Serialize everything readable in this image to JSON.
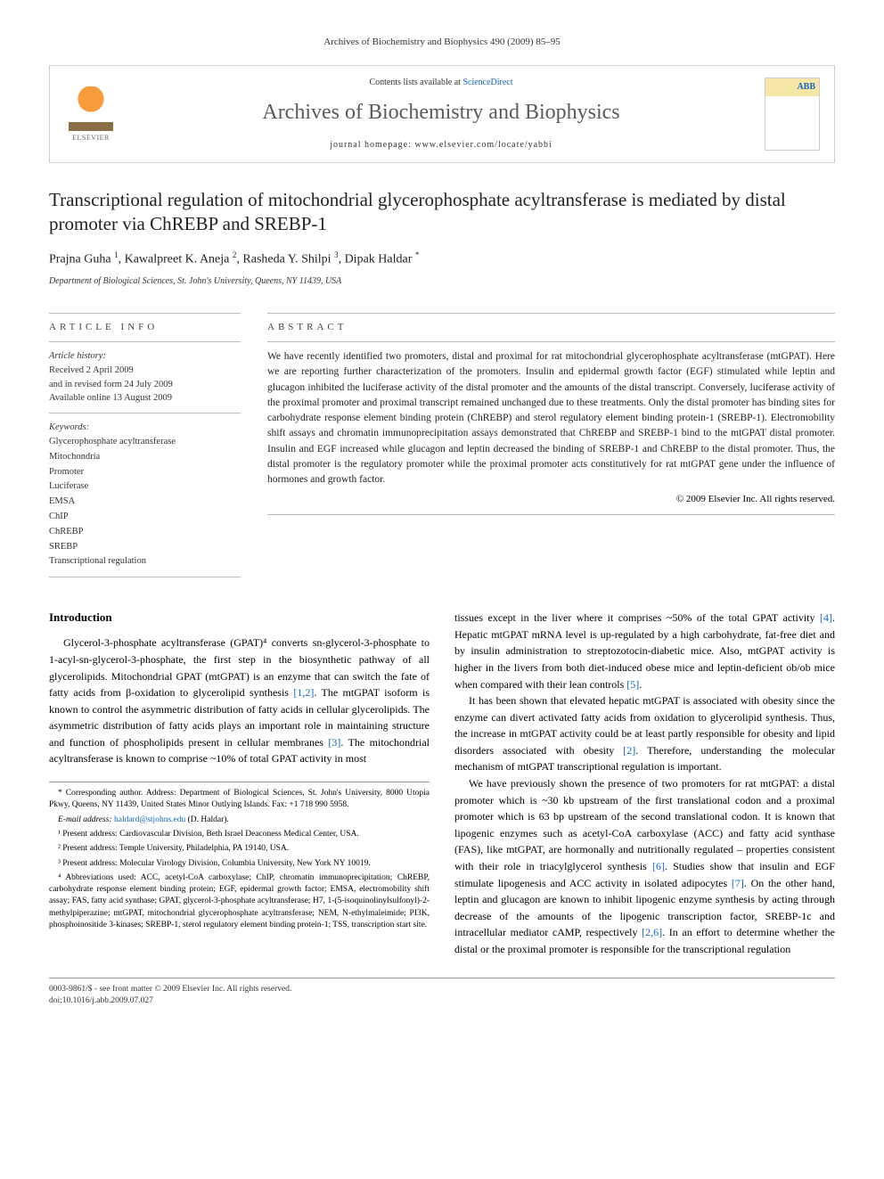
{
  "running_head": "Archives of Biochemistry and Biophysics 490 (2009) 85–95",
  "masthead": {
    "contents_prefix": "Contents lists available at ",
    "contents_link": "ScienceDirect",
    "journal_name": "Archives of Biochemistry and Biophysics",
    "homepage_prefix": "journal homepage: ",
    "homepage_url": "www.elsevier.com/locate/yabbi",
    "publisher": "ELSEVIER"
  },
  "title": "Transcriptional regulation of mitochondrial glycerophosphate acyltransferase is mediated by distal promoter via ChREBP and SREBP-1",
  "authors_html": "Prajna Guha <sup>1</sup>, Kawalpreet K. Aneja <sup>2</sup>, Rasheda Y. Shilpi <sup>3</sup>, Dipak Haldar <sup>*</sup>",
  "affiliation": "Department of Biological Sciences, St. John's University, Queens, NY 11439, USA",
  "article_info": {
    "heading": "ARTICLE INFO",
    "history_label": "Article history:",
    "history_lines": [
      "Received 2 April 2009",
      "and in revised form 24 July 2009",
      "Available online 13 August 2009"
    ],
    "keywords_label": "Keywords:",
    "keywords": [
      "Glycerophosphate acyltransferase",
      "Mitochondria",
      "Promoter",
      "Luciferase",
      "EMSA",
      "ChIP",
      "ChREBP",
      "SREBP",
      "Transcriptional regulation"
    ]
  },
  "abstract": {
    "heading": "ABSTRACT",
    "text": "We have recently identified two promoters, distal and proximal for rat mitochondrial glycerophosphate acyltransferase (mtGPAT). Here we are reporting further characterization of the promoters. Insulin and epidermal growth factor (EGF) stimulated while leptin and glucagon inhibited the luciferase activity of the distal promoter and the amounts of the distal transcript. Conversely, luciferase activity of the proximal promoter and proximal transcript remained unchanged due to these treatments. Only the distal promoter has binding sites for carbohydrate response element binding protein (ChREBP) and sterol regulatory element binding protein-1 (SREBP-1). Electromobility shift assays and chromatin immunoprecipitation assays demonstrated that ChREBP and SREBP-1 bind to the mtGPAT distal promoter. Insulin and EGF increased while glucagon and leptin decreased the binding of SREBP-1 and ChREBP to the distal promoter. Thus, the distal promoter is the regulatory promoter while the proximal promoter acts constitutively for rat mtGPAT gene under the influence of hormones and growth factor.",
    "copyright": "© 2009 Elsevier Inc. All rights reserved."
  },
  "body": {
    "intro_heading": "Introduction",
    "col1_p1": "Glycerol-3-phosphate acyltransferase (GPAT)⁴ converts sn-glycerol-3-phosphate to 1-acyl-sn-glycerol-3-phosphate, the first step in the biosynthetic pathway of all glycerolipids. Mitochondrial GPAT (mtGPAT) is an enzyme that can switch the fate of fatty acids from β-oxidation to glycerolipid synthesis [1,2]. The mtGPAT isoform is known to control the asymmetric distribution of fatty acids in cellular glycerolipids. The asymmetric distribution of fatty acids plays an important role in maintaining structure and function of phospholipids present in cellular membranes [3]. The mitochondrial acyltransferase is known to comprise ~10% of total GPAT activity in most",
    "col2_p1": "tissues except in the liver where it comprises ~50% of the total GPAT activity [4]. Hepatic mtGPAT mRNA level is up-regulated by a high carbohydrate, fat-free diet and by insulin administration to streptozotocin-diabetic mice. Also, mtGPAT activity is higher in the livers from both diet-induced obese mice and leptin-deficient ob/ob mice when compared with their lean controls [5].",
    "col2_p2": "It has been shown that elevated hepatic mtGPAT is associated with obesity since the enzyme can divert activated fatty acids from oxidation to glycerolipid synthesis. Thus, the increase in mtGPAT activity could be at least partly responsible for obesity and lipid disorders associated with obesity [2]. Therefore, understanding the molecular mechanism of mtGPAT transcriptional regulation is important.",
    "col2_p3": "We have previously shown the presence of two promoters for rat mtGPAT: a distal promoter which is ~30 kb upstream of the first translational codon and a proximal promoter which is 63 bp upstream of the second translational codon. It is known that lipogenic enzymes such as acetyl-CoA carboxylase (ACC) and fatty acid synthase (FAS), like mtGPAT, are hormonally and nutritionally regulated – properties consistent with their role in triacylglycerol synthesis [6]. Studies show that insulin and EGF stimulate lipogenesis and ACC activity in isolated adipocytes [7]. On the other hand, leptin and glucagon are known to inhibit lipogenic enzyme synthesis by acting through decrease of the amounts of the lipogenic transcription factor, SREBP-1c and intracellular mediator cAMP, respectively [2,6]. In an effort to determine whether the distal or the proximal promoter is responsible for the transcriptional regulation"
  },
  "footnotes": {
    "corresponding": "* Corresponding author. Address: Department of Biological Sciences, St. John's University, 8000 Utopia Pkwy, Queens, NY 11439, United States Minor Outlying Islands. Fax: +1 718 990 5958.",
    "email_label": "E-mail address: ",
    "email": "haldard@stjohns.edu",
    "email_suffix": " (D. Haldar).",
    "note1": "¹ Present address: Cardiovascular Division, Beth Israel Deaconess Medical Center, USA.",
    "note2": "² Present address: Temple University, Philadelphia, PA 19140, USA.",
    "note3": "³ Present address: Molecular Virology Division, Columbia University, New York NY 10019.",
    "abbreviations": "⁴ Abbreviations used: ACC, acetyl-CoA carboxylase; ChIP, chromatin immunoprecipitation; ChREBP, carbohydrate response element binding protein; EGF, epidermal growth factor; EMSA, electromobility shift assay; FAS, fatty acid synthase; GPAT, glycerol-3-phosphate acyltransferase; H7, 1-(5-isoquinolinylsulfonyl)-2-methylpiperazine; mtGPAT, mitochondrial glycerophosphate acyltransferase; NEM, N-ethylmaleimide; PI3K, phosphoinositide 3-kinases; SREBP-1, sterol regulatory element binding protein-1; TSS, transcription start site."
  },
  "footer": {
    "line1": "0003-9861/$ - see front matter © 2009 Elsevier Inc. All rights reserved.",
    "line2": "doi:10.1016/j.abb.2009.07.027"
  },
  "colors": {
    "link": "#1566c0",
    "text": "#000000",
    "muted": "#5a5a5a",
    "border": "#d0d0d0",
    "elsevier_orange": "#f89b3c"
  }
}
